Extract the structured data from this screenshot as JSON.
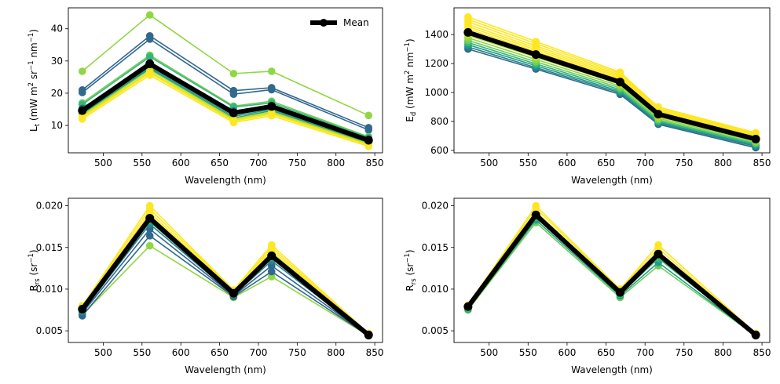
{
  "figure": {
    "palette": [
      "#31688e",
      "#26828e",
      "#1f9e89",
      "#35b779",
      "#6ece58",
      "#90d743",
      "#b5de2b",
      "#dde318",
      "#fde725"
    ],
    "mean_color": "#000000"
  },
  "chart_data": [
    {
      "type": "line",
      "panel": "top-left",
      "xlabel": "Wavelength (nm)",
      "ylabel": "L_t (mW m^2 sr^-1 nm^-1)",
      "ylabel_parts": {
        "base": "L",
        "sub": "t",
        "rest": " (mW m",
        "sup1": "2",
        "mid": " sr",
        "sup2": "−1",
        "mid2": " nm",
        "sup3": "−1",
        "end": ")"
      },
      "xlim": [
        455,
        860
      ],
      "ylim": [
        1.5,
        46.5
      ],
      "xticks": [
        500,
        550,
        600,
        650,
        700,
        750,
        800,
        850
      ],
      "yticks": [
        10,
        20,
        30,
        40
      ],
      "legend": {
        "position": "top-right",
        "label": "Mean"
      },
      "x": [
        473,
        560,
        668,
        717,
        842
      ],
      "series": [
        {
          "values": [
            26.8,
            44.3,
            26.1,
            26.8,
            13.1
          ],
          "color": "#90d743"
        },
        {
          "values": [
            21.0,
            37.8,
            20.8,
            21.7,
            9.3
          ],
          "color": "#31688e"
        },
        {
          "values": [
            20.2,
            36.8,
            19.7,
            21.1,
            8.6
          ],
          "color": "#31688e"
        },
        {
          "values": [
            17.0,
            31.8,
            16.0,
            17.5,
            6.5
          ],
          "color": "#6ece58"
        },
        {
          "values": [
            16.5,
            31.3,
            15.7,
            17.0,
            6.2
          ],
          "color": "#35b779"
        },
        {
          "values": [
            15.3,
            29.5,
            14.5,
            16.2,
            5.8
          ],
          "color": "#31688e"
        },
        {
          "values": [
            14.6,
            28.6,
            13.4,
            15.5,
            5.2
          ],
          "color": "#26828e"
        },
        {
          "values": [
            14.0,
            28.0,
            12.8,
            15.0,
            5.0
          ],
          "color": "#1f9e89"
        },
        {
          "values": [
            13.6,
            27.6,
            12.3,
            14.6,
            4.6
          ],
          "color": "#1f9e89"
        },
        {
          "values": [
            13.2,
            27.2,
            12.0,
            14.2,
            4.3
          ],
          "color": "#b5de2b"
        },
        {
          "values": [
            12.8,
            26.6,
            11.6,
            13.8,
            4.0
          ],
          "color": "#dde318"
        },
        {
          "values": [
            12.5,
            26.2,
            11.3,
            13.5,
            3.8
          ],
          "color": "#fde725"
        },
        {
          "values": [
            12.0,
            25.6,
            10.9,
            13.0,
            3.5
          ],
          "color": "#fde725"
        }
      ],
      "mean": [
        14.6,
        29.1,
        13.9,
        15.9,
        5.4
      ]
    },
    {
      "type": "line",
      "panel": "top-right",
      "xlabel": "Wavelength (nm)",
      "ylabel": "E_d (mW m^2 nm^-1)",
      "ylabel_parts": {
        "base": "E",
        "sub": "d",
        "rest": " (mW m",
        "sup1": "2",
        "mid": " nm",
        "sup2": "−1",
        "end": ")"
      },
      "xlim": [
        455,
        860
      ],
      "ylim": [
        583,
        1585
      ],
      "xticks": [
        500,
        550,
        600,
        650,
        700,
        750,
        800,
        850
      ],
      "yticks": [
        600,
        800,
        1000,
        1200,
        1400
      ],
      "x": [
        473,
        560,
        668,
        717,
        842
      ],
      "series": [
        {
          "values": [
            1300,
            1162,
            987,
            780,
            618
          ],
          "color": "#31688e"
        },
        {
          "values": [
            1315,
            1172,
            998,
            788,
            628
          ],
          "color": "#26828e"
        },
        {
          "values": [
            1330,
            1185,
            1008,
            795,
            636
          ],
          "color": "#1f9e89"
        },
        {
          "values": [
            1345,
            1198,
            1020,
            803,
            645
          ],
          "color": "#35b779"
        },
        {
          "values": [
            1360,
            1212,
            1032,
            812,
            652
          ],
          "color": "#6ece58"
        },
        {
          "values": [
            1378,
            1228,
            1045,
            822,
            662
          ],
          "color": "#90d743"
        },
        {
          "values": [
            1395,
            1244,
            1058,
            832,
            670
          ],
          "color": "#b5de2b"
        },
        {
          "values": [
            1410,
            1258,
            1068,
            842,
            678
          ],
          "color": "#dde318"
        },
        {
          "values": [
            1425,
            1270,
            1078,
            852,
            686
          ],
          "color": "#dde318"
        },
        {
          "values": [
            1440,
            1282,
            1090,
            860,
            694
          ],
          "color": "#fde725"
        },
        {
          "values": [
            1455,
            1295,
            1100,
            868,
            700
          ],
          "color": "#fde725"
        },
        {
          "values": [
            1470,
            1308,
            1110,
            876,
            706
          ],
          "color": "#fde725"
        },
        {
          "values": [
            1488,
            1322,
            1120,
            884,
            712
          ],
          "color": "#fde725"
        },
        {
          "values": [
            1505,
            1338,
            1130,
            893,
            718
          ],
          "color": "#fde725"
        },
        {
          "values": [
            1522,
            1352,
            1140,
            900,
            722
          ],
          "color": "#fde725"
        }
      ],
      "mean": [
        1415,
        1262,
        1072,
        850,
        678
      ]
    },
    {
      "type": "line",
      "panel": "bottom-left",
      "xlabel": "Wavelength (nm)",
      "ylabel": "R_rs (sr^-1)",
      "ylabel_parts": {
        "base": "R",
        "sub": "rs",
        "rest": " (sr",
        "sup1": "−1",
        "end": ")"
      },
      "xlim": [
        455,
        860
      ],
      "ylim": [
        0.0036,
        0.0209
      ],
      "xticks": [
        500,
        550,
        600,
        650,
        700,
        750,
        800,
        850
      ],
      "yticks": [
        0.005,
        0.01,
        0.015,
        0.02
      ],
      "ytick_labels": [
        "0.005",
        "0.010",
        "0.015",
        "0.020"
      ],
      "x": [
        473,
        560,
        668,
        717,
        842
      ],
      "series": [
        {
          "values": [
            0.0069,
            0.0152,
            0.009,
            0.0115,
            0.0044
          ],
          "color": "#90d743"
        },
        {
          "values": [
            0.0068,
            0.0164,
            0.0091,
            0.0121,
            0.0044
          ],
          "color": "#31688e"
        },
        {
          "values": [
            0.0071,
            0.0172,
            0.0092,
            0.0128,
            0.0044
          ],
          "color": "#31688e"
        },
        {
          "values": [
            0.0073,
            0.0178,
            0.0093,
            0.0134,
            0.0045
          ],
          "color": "#26828e"
        },
        {
          "values": [
            0.0074,
            0.0181,
            0.0094,
            0.0137,
            0.0045
          ],
          "color": "#1f9e89"
        },
        {
          "values": [
            0.0075,
            0.0183,
            0.0094,
            0.0139,
            0.0045
          ],
          "color": "#35b779"
        },
        {
          "values": [
            0.0076,
            0.0186,
            0.0095,
            0.0141,
            0.0045
          ],
          "color": "#b5de2b"
        },
        {
          "values": [
            0.0077,
            0.0189,
            0.0096,
            0.0144,
            0.0046
          ],
          "color": "#dde318"
        },
        {
          "values": [
            0.0078,
            0.0192,
            0.0097,
            0.0147,
            0.0046
          ],
          "color": "#fde725"
        },
        {
          "values": [
            0.0079,
            0.0196,
            0.0098,
            0.015,
            0.0046
          ],
          "color": "#fde725"
        },
        {
          "values": [
            0.008,
            0.02,
            0.0099,
            0.0153,
            0.0047
          ],
          "color": "#fde725"
        }
      ],
      "mean": [
        0.0076,
        0.0185,
        0.0095,
        0.014,
        0.0045
      ]
    },
    {
      "type": "line",
      "panel": "bottom-right",
      "xlabel": "Wavelength (nm)",
      "ylabel": "R_rs (sr^-1)",
      "ylabel_parts": {
        "base": "R",
        "sub": "rs",
        "rest": " (sr",
        "sup1": "−1",
        "end": ")"
      },
      "xlim": [
        455,
        860
      ],
      "ylim": [
        0.0036,
        0.0209
      ],
      "xticks": [
        500,
        550,
        600,
        650,
        700,
        750,
        800,
        850
      ],
      "yticks": [
        0.005,
        0.01,
        0.015,
        0.02
      ],
      "ytick_labels": [
        "0.005",
        "0.010",
        "0.015",
        "0.020"
      ],
      "x": [
        473,
        560,
        668,
        717,
        842
      ],
      "series": [
        {
          "values": [
            0.0075,
            0.018,
            0.009,
            0.0128,
            0.0044
          ],
          "color": "#6ece58"
        },
        {
          "values": [
            0.0076,
            0.0183,
            0.0092,
            0.0132,
            0.0044
          ],
          "color": "#1f9e89"
        },
        {
          "values": [
            0.0077,
            0.0186,
            0.0094,
            0.0137,
            0.0045
          ],
          "color": "#35b779"
        },
        {
          "values": [
            0.0078,
            0.0189,
            0.0095,
            0.0141,
            0.0045
          ],
          "color": "#b5de2b"
        },
        {
          "values": [
            0.0079,
            0.0193,
            0.0097,
            0.0145,
            0.0046
          ],
          "color": "#dde318"
        },
        {
          "values": [
            0.008,
            0.0197,
            0.0099,
            0.0149,
            0.0046
          ],
          "color": "#fde725"
        },
        {
          "values": [
            0.0081,
            0.02,
            0.01,
            0.0153,
            0.0047
          ],
          "color": "#fde725"
        }
      ],
      "mean": [
        0.0079,
        0.0189,
        0.0096,
        0.0142,
        0.0045
      ]
    }
  ]
}
